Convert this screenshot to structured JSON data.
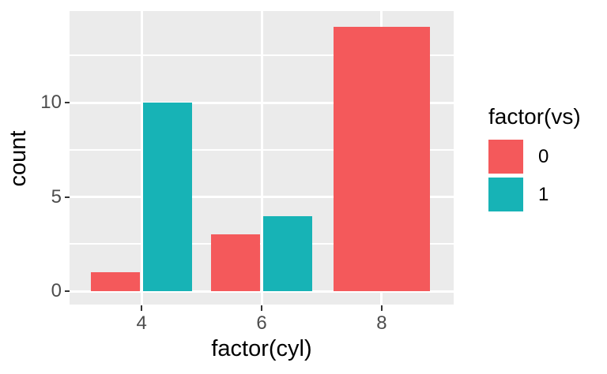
{
  "figure": {
    "background": "#FFFFFF"
  },
  "panel": {
    "background": "#EBEBEB",
    "gridline_color": "#FFFFFF"
  },
  "axes": {
    "tick_mark_color": "#333333",
    "tick_label_color": "#4D4D4D",
    "title_color": "#000000"
  },
  "legend": {
    "title": "factor(vs)",
    "items": [
      {
        "label": "0",
        "color": "#F4595B"
      },
      {
        "label": "1",
        "color": "#17B3B6"
      }
    ]
  },
  "chart_data": {
    "type": "bar",
    "position": "dodge",
    "title": "",
    "xlabel": "factor(cyl)",
    "ylabel": "count",
    "legend_title": "factor(vs)",
    "legend_position": "right",
    "categories": [
      "4",
      "6",
      "8"
    ],
    "series": [
      {
        "name": "0",
        "color": "#F4595B",
        "values": [
          1,
          3,
          14
        ]
      },
      {
        "name": "1",
        "color": "#17B3B6",
        "values": [
          10,
          4,
          null
        ]
      }
    ],
    "x_tick_labels": [
      "4",
      "6",
      "8"
    ],
    "y_ticks": [
      0,
      5,
      10
    ],
    "y_minor_ticks": [
      2.5,
      7.5,
      12.5
    ],
    "ylim": [
      0,
      14.85
    ],
    "grid": true,
    "panel_background": "#EBEBEB",
    "gridline_color": "#FFFFFF"
  }
}
